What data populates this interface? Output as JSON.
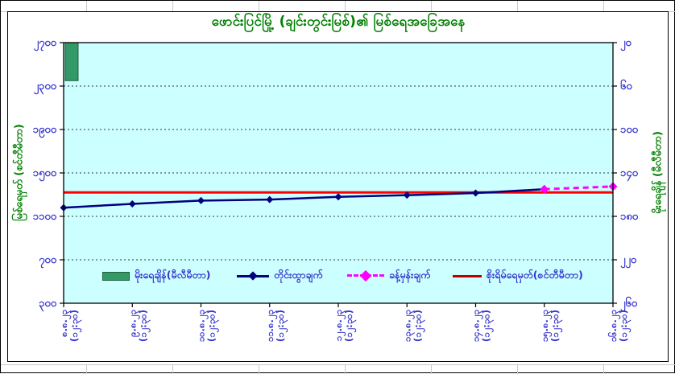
{
  "chart_data": {
    "type": "line",
    "title": "ဖောင်းပြင်မြို့ (ချင်းတွင်းမြစ်)၏ မြစ်ရေအခြေအနေ",
    "plot_bg": "#CCFFFF",
    "grid": "horizontal-dotted",
    "legend_position": "bottom",
    "categories": [
      {
        "date": "၈.၈.၂၃",
        "time": "(၁၂:၃၀)"
      },
      {
        "date": "၉.၈.၂၃",
        "time": "(၁၂:၃၀)"
      },
      {
        "date": "၁၀.၈.၂၃",
        "time": "(၁၂:၃၀)"
      },
      {
        "date": "၁၁.၈.၂၃",
        "time": "(၁၂:၃၀)"
      },
      {
        "date": "၁၂.၈.၂၃",
        "time": "(၁၂:၃၀)"
      },
      {
        "date": "၁၃.၈.၂၃",
        "time": "(၁၂:၃၀)"
      },
      {
        "date": "၁၄.၈.၂၃",
        "time": "(၁၂:၃၀)"
      },
      {
        "date": "၁၅.၈.၂၃",
        "time": "(၁၂:၃၀)"
      },
      {
        "date": "၁၆.၈.၂၃",
        "time": "(၁၂:၃၀)"
      }
    ],
    "left_axis": {
      "title": "မြစ်ရေမှတ် (စင်တီမီတာ)",
      "min": 300,
      "max": 2700,
      "step": 400,
      "tick_labels": [
        "၃၀၀",
        "၇၀၀",
        "၁၁၀၀",
        "၁၅၀၀",
        "၁၉၀၀",
        "၂၃၀၀",
        "၂၇၀၀"
      ],
      "label_color": "#3333CC"
    },
    "right_axis": {
      "title": "မိုးရေချိန် (မီလီမီတာ)",
      "min": 20,
      "max": 260,
      "step": 40,
      "reversed": true,
      "tick_labels": [
        "၂၀",
        "၆၀",
        "၁၀၀",
        "၁၄၀",
        "၁၈၀",
        "၂၂၀",
        "၂၆၀"
      ],
      "label_color": "#3333CC"
    },
    "series": [
      {
        "name": "မိုးရေချိန်(မီလီမီတာ)",
        "type": "bar",
        "axis": "right",
        "color": "#339966",
        "values": [
          55,
          null,
          null,
          null,
          null,
          null,
          null,
          null,
          null
        ]
      },
      {
        "name": "တိုင်းထွာချက်",
        "type": "line",
        "axis": "left",
        "color": "#000080",
        "marker": "diamond",
        "values": [
          1180,
          1215,
          1245,
          1255,
          1280,
          1295,
          1315,
          1350,
          null
        ]
      },
      {
        "name": "ခန့်မှန်းချက်",
        "type": "line",
        "dash": true,
        "axis": "left",
        "color": "#FF00FF",
        "marker": "diamond",
        "values": [
          null,
          null,
          null,
          null,
          null,
          null,
          null,
          1350,
          1375
        ]
      },
      {
        "name": "စိုးရိမ်ရေမှတ်(စင်တီမီတာ)",
        "type": "line",
        "axis": "left",
        "color": "#FF0000",
        "values": [
          1320,
          1320,
          1320,
          1320,
          1320,
          1320,
          1320,
          1320,
          1320
        ]
      }
    ]
  }
}
